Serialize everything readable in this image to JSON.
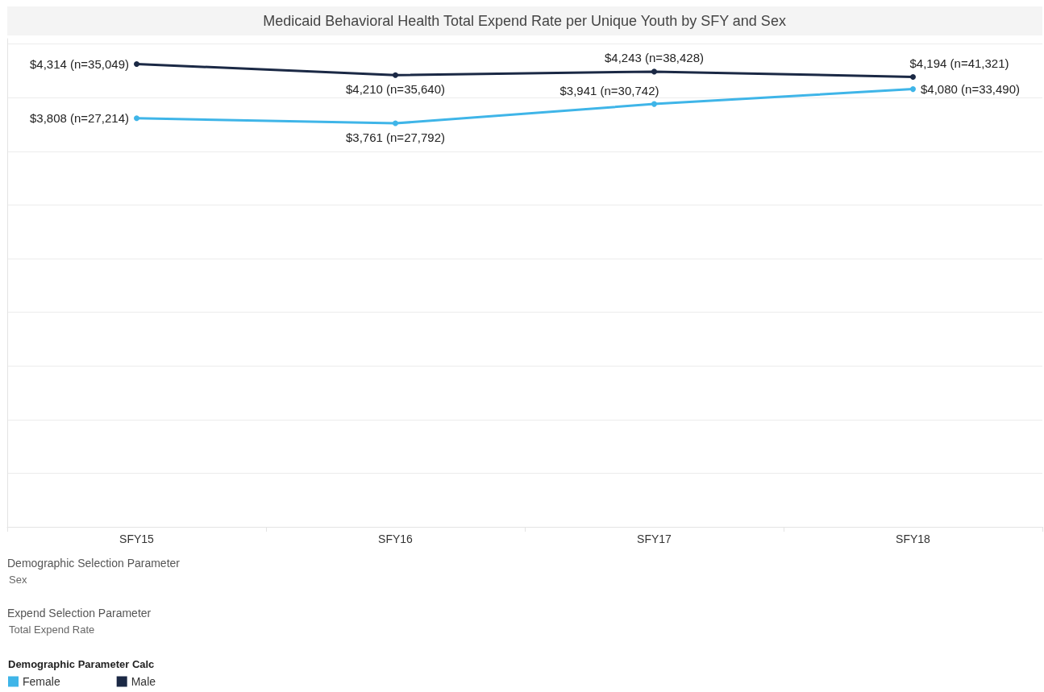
{
  "chart_data": {
    "type": "line",
    "title": "Medicaid Behavioral Health Total Expend Rate per Unique Youth by SFY and Sex",
    "categories": [
      "SFY15",
      "SFY16",
      "SFY17",
      "SFY18"
    ],
    "series": [
      {
        "name": "Female",
        "color": "#3fb5e8",
        "values": [
          3808,
          3761,
          3941,
          4080
        ],
        "value_labels": [
          "$3,808 (n=27,214)",
          "$3,761 (n=27,792)",
          "$3,941 (n=30,742)",
          "$4,080 (n=33,490)"
        ]
      },
      {
        "name": "Male",
        "color": "#1b2945",
        "values": [
          4314,
          4210,
          4243,
          4194
        ],
        "value_labels": [
          "$4,314 (n=35,049)",
          "$4,210 (n=35,640)",
          "$4,243 (n=38,428)",
          "$4,194 (n=41,321)"
        ]
      }
    ],
    "ylim": [
      0,
      4550
    ],
    "yticks": [
      {
        "value": 0,
        "label": null
      },
      {
        "value": 500,
        "label": null
      },
      {
        "value": 1000,
        "label": null
      },
      {
        "value": 1500,
        "label": null
      },
      {
        "value": 2000,
        "label": null
      },
      {
        "value": 2500,
        "label": null
      },
      {
        "value": 3000,
        "label": null
      },
      {
        "value": 3500,
        "label": null
      },
      {
        "value": 4000,
        "label": null
      },
      {
        "value": 4500,
        "label": null
      }
    ],
    "tick_labels": "x",
    "grid": "y",
    "legend": "bottom left",
    "legend_title": "Demographic Parameter Calc",
    "annotations": [
      "Demographic Selection Parameter",
      "Sex",
      "Expend Selection Parameter",
      "Total Expend Rate"
    ],
    "marker": "circle",
    "line_style": "solid"
  }
}
